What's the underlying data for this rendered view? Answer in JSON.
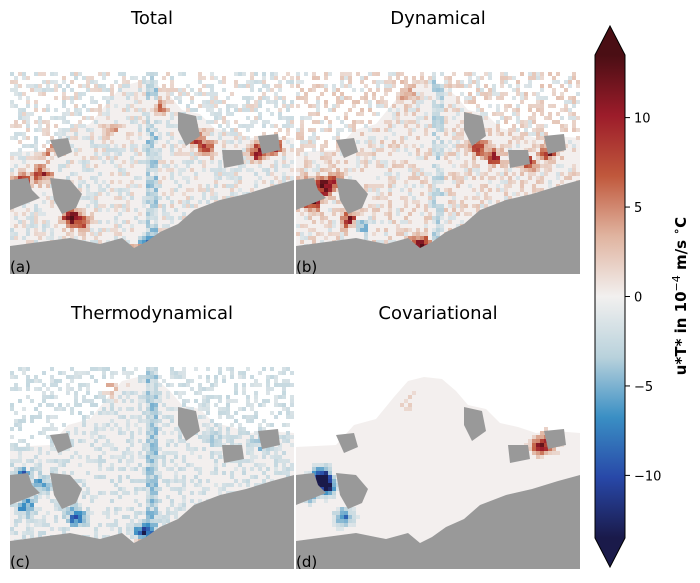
{
  "chart_data": {
    "type": "heatmap",
    "panels": [
      {
        "id": "a",
        "title": "Total",
        "label": "(a)"
      },
      {
        "id": "b",
        "title": "Dynamical",
        "label": "(b)"
      },
      {
        "id": "c",
        "title": "Thermodynamical",
        "label": "(c)"
      },
      {
        "id": "d",
        "title": "Covariational",
        "label": "(d)"
      }
    ],
    "colorbar": {
      "label": "u*T* in 10^-4 m/s °C",
      "range": [
        -13.5,
        13.5
      ],
      "ticks": [
        {
          "value": 10,
          "label": "10"
        },
        {
          "value": 5,
          "label": "5"
        },
        {
          "value": 0,
          "label": "0"
        },
        {
          "value": -5,
          "label": "−5"
        },
        {
          "value": -10,
          "label": "−10"
        }
      ],
      "extend": "both",
      "colors": [
        "#1a1a4a",
        "#2848a8",
        "#3a8fc4",
        "#b9d2dc",
        "#f2f0ef",
        "#e0b4a0",
        "#c0583c",
        "#9c1c2a",
        "#4a0e14"
      ]
    },
    "colors": {
      "land": "#999999",
      "ocean_background": "#f3efee"
    }
  }
}
